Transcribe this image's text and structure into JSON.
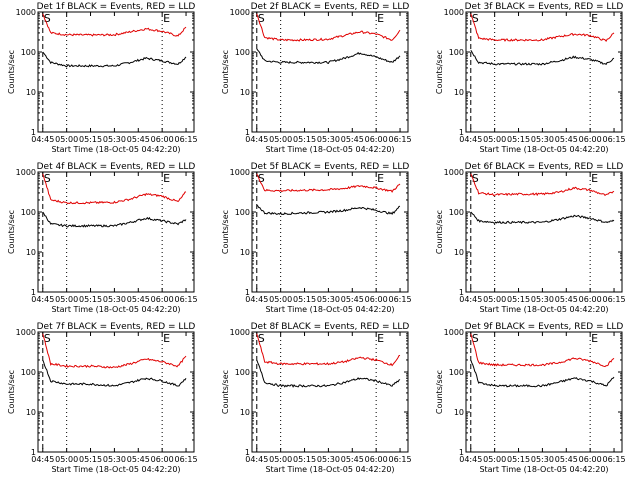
{
  "figure": {
    "ylabel": "Counts/sec",
    "xlabel_prefix": "Start Time (18-Oct-05 04:42:20)",
    "colors": {
      "events": "#000000",
      "lld": "#e00000",
      "axis": "#000000"
    }
  },
  "chart_data": [
    {
      "type": "line",
      "title": "Det 1f BLACK = Events, RED = LLD",
      "xlabel": "Start Time (18-Oct-05 04:42:20)",
      "ylabel": "Counts/sec",
      "x_ticks": [
        "04:45",
        "05:00",
        "05:15",
        "05:30",
        "05:45",
        "06:00",
        "06:15"
      ],
      "y_scale": "log",
      "ylim": [
        1,
        1000
      ],
      "y_ticks": [
        "1",
        "10",
        "100",
        "1000"
      ],
      "markers": [
        {
          "label": "S",
          "x": "04:45"
        },
        {
          "label": "E",
          "x": "06:00"
        }
      ],
      "series": [
        {
          "name": "Events",
          "x": [
            "04:45",
            "04:50",
            "05:00",
            "05:15",
            "05:30",
            "05:40",
            "05:50",
            "06:00",
            "06:10",
            "06:15"
          ],
          "values": [
            100,
            55,
            45,
            45,
            45,
            55,
            70,
            60,
            50,
            75
          ]
        },
        {
          "name": "LLD",
          "x": [
            "04:45",
            "04:50",
            "05:00",
            "05:15",
            "05:30",
            "05:40",
            "05:50",
            "06:00",
            "06:10",
            "06:15"
          ],
          "values": [
            900,
            300,
            270,
            265,
            270,
            320,
            380,
            330,
            250,
            420
          ]
        }
      ]
    },
    {
      "type": "line",
      "title": "Det 2f BLACK = Events, RED = LLD",
      "xlabel": "Start Time (18-Oct-05 04:42:20)",
      "ylabel": "Counts/sec",
      "x_ticks": [
        "04:45",
        "05:00",
        "05:15",
        "05:30",
        "05:45",
        "06:00",
        "06:15"
      ],
      "y_scale": "log",
      "ylim": [
        1,
        1000
      ],
      "y_ticks": [
        "1",
        "10",
        "100",
        "1000"
      ],
      "markers": [
        {
          "label": "S",
          "x": "04:45"
        },
        {
          "label": "E",
          "x": "06:00"
        }
      ],
      "series": [
        {
          "name": "Events",
          "x": [
            "04:45",
            "04:50",
            "05:00",
            "05:15",
            "05:30",
            "05:40",
            "05:50",
            "06:00",
            "06:10",
            "06:15"
          ],
          "values": [
            120,
            60,
            55,
            55,
            55,
            70,
            95,
            75,
            55,
            80
          ]
        },
        {
          "name": "LLD",
          "x": [
            "04:45",
            "04:50",
            "05:00",
            "05:15",
            "05:30",
            "05:40",
            "05:50",
            "06:00",
            "06:10",
            "06:15"
          ],
          "values": [
            900,
            230,
            200,
            200,
            210,
            260,
            320,
            280,
            200,
            350
          ]
        }
      ]
    },
    {
      "type": "line",
      "title": "Det 3f BLACK = Events, RED = LLD",
      "xlabel": "Start Time (18-Oct-05 04:42:20)",
      "ylabel": "Counts/sec",
      "x_ticks": [
        "04:45",
        "05:00",
        "05:15",
        "05:30",
        "05:45",
        "06:00",
        "06:15"
      ],
      "y_scale": "log",
      "ylim": [
        1,
        1000
      ],
      "y_ticks": [
        "1",
        "10",
        "100",
        "1000"
      ],
      "markers": [
        {
          "label": "S",
          "x": "04:45"
        },
        {
          "label": "E",
          "x": "06:00"
        }
      ],
      "series": [
        {
          "name": "Events",
          "x": [
            "04:45",
            "04:50",
            "05:00",
            "05:15",
            "05:30",
            "05:40",
            "05:50",
            "06:00",
            "06:10",
            "06:15"
          ],
          "values": [
            110,
            55,
            50,
            50,
            50,
            60,
            75,
            65,
            50,
            70
          ]
        },
        {
          "name": "LLD",
          "x": [
            "04:45",
            "04:50",
            "05:00",
            "05:15",
            "05:30",
            "05:40",
            "05:50",
            "06:00",
            "06:10",
            "06:15"
          ],
          "values": [
            900,
            220,
            200,
            200,
            200,
            240,
            280,
            260,
            190,
            300
          ]
        }
      ]
    },
    {
      "type": "line",
      "title": "Det 4f BLACK = Events, RED = LLD",
      "xlabel": "Start Time (18-Oct-05 04:42:20)",
      "ylabel": "Counts/sec",
      "x_ticks": [
        "04:45",
        "05:00",
        "05:15",
        "05:30",
        "05:45",
        "06:00",
        "06:15"
      ],
      "y_scale": "log",
      "ylim": [
        1,
        1000
      ],
      "y_ticks": [
        "1",
        "10",
        "100",
        "1000"
      ],
      "markers": [
        {
          "label": "S",
          "x": "04:45"
        },
        {
          "label": "E",
          "x": "06:00"
        }
      ],
      "series": [
        {
          "name": "Events",
          "x": [
            "04:45",
            "04:50",
            "05:00",
            "05:15",
            "05:30",
            "05:40",
            "05:50",
            "06:00",
            "06:10",
            "06:15"
          ],
          "values": [
            100,
            50,
            45,
            45,
            45,
            55,
            70,
            60,
            50,
            65
          ]
        },
        {
          "name": "LLD",
          "x": [
            "04:45",
            "04:50",
            "05:00",
            "05:15",
            "05:30",
            "05:40",
            "05:50",
            "06:00",
            "06:10",
            "06:15"
          ],
          "values": [
            900,
            200,
            170,
            170,
            175,
            210,
            280,
            250,
            180,
            320
          ]
        }
      ]
    },
    {
      "type": "line",
      "title": "Det 5f BLACK = Events, RED = LLD",
      "xlabel": "Start Time (18-Oct-05 04:42:20)",
      "ylabel": "Counts/sec",
      "x_ticks": [
        "04:45",
        "05:00",
        "05:15",
        "05:30",
        "05:45",
        "06:00",
        "06:15"
      ],
      "y_scale": "log",
      "ylim": [
        1,
        1000
      ],
      "y_ticks": [
        "1",
        "10",
        "100",
        "1000"
      ],
      "markers": [
        {
          "label": "S",
          "x": "04:45"
        },
        {
          "label": "E",
          "x": "06:00"
        }
      ],
      "series": [
        {
          "name": "Events",
          "x": [
            "04:45",
            "04:50",
            "05:00",
            "05:15",
            "05:30",
            "05:40",
            "05:50",
            "06:00",
            "06:10",
            "06:15"
          ],
          "values": [
            150,
            95,
            90,
            95,
            100,
            110,
            130,
            110,
            90,
            140
          ]
        },
        {
          "name": "LLD",
          "x": [
            "04:45",
            "04:50",
            "05:00",
            "05:15",
            "05:30",
            "05:40",
            "05:50",
            "06:00",
            "06:10",
            "06:15"
          ],
          "values": [
            900,
            350,
            340,
            350,
            360,
            390,
            450,
            400,
            330,
            500
          ]
        }
      ]
    },
    {
      "type": "line",
      "title": "Det 6f BLACK = Events, RED = LLD",
      "xlabel": "Start Time (18-Oct-05 04:42:20)",
      "ylabel": "Counts/sec",
      "x_ticks": [
        "04:45",
        "05:00",
        "05:15",
        "05:30",
        "05:45",
        "06:00",
        "06:15"
      ],
      "y_scale": "log",
      "ylim": [
        1,
        1000
      ],
      "y_ticks": [
        "1",
        "10",
        "100",
        "1000"
      ],
      "markers": [
        {
          "label": "S",
          "x": "04:45"
        },
        {
          "label": "E",
          "x": "06:00"
        }
      ],
      "series": [
        {
          "name": "Events",
          "x": [
            "04:45",
            "04:50",
            "05:00",
            "05:15",
            "05:30",
            "05:40",
            "05:50",
            "06:00",
            "06:10",
            "06:15"
          ],
          "values": [
            100,
            60,
            55,
            55,
            55,
            65,
            80,
            70,
            55,
            60
          ]
        },
        {
          "name": "LLD",
          "x": [
            "04:45",
            "04:50",
            "05:00",
            "05:15",
            "05:30",
            "05:40",
            "05:50",
            "06:00",
            "06:10",
            "06:15"
          ],
          "values": [
            900,
            300,
            270,
            280,
            280,
            310,
            400,
            350,
            260,
            330
          ]
        }
      ]
    },
    {
      "type": "line",
      "title": "Det 7f BLACK = Events, RED = LLD",
      "xlabel": "Start Time (18-Oct-05 04:42:20)",
      "ylabel": "Counts/sec",
      "x_ticks": [
        "04:45",
        "05:00",
        "05:15",
        "05:30",
        "05:45",
        "06:00",
        "06:15"
      ],
      "y_scale": "log",
      "ylim": [
        1,
        1000
      ],
      "y_ticks": [
        "1",
        "10",
        "100",
        "1000"
      ],
      "markers": [
        {
          "label": "S",
          "x": "04:45"
        },
        {
          "label": "E",
          "x": "06:00"
        }
      ],
      "series": [
        {
          "name": "Events",
          "x": [
            "04:45",
            "04:50",
            "05:00",
            "05:15",
            "05:30",
            "05:40",
            "05:50",
            "06:00",
            "06:10",
            "06:15"
          ],
          "values": [
            200,
            60,
            50,
            50,
            45,
            55,
            70,
            60,
            45,
            70
          ]
        },
        {
          "name": "LLD",
          "x": [
            "04:45",
            "04:50",
            "05:00",
            "05:15",
            "05:30",
            "05:40",
            "05:50",
            "06:00",
            "06:10",
            "06:15"
          ],
          "values": [
            900,
            160,
            140,
            140,
            130,
            160,
            210,
            180,
            140,
            250
          ]
        }
      ]
    },
    {
      "type": "line",
      "title": "Det 8f BLACK = Events, RED = LLD",
      "xlabel": "Start Time (18-Oct-05 04:42:20)",
      "ylabel": "Counts/sec",
      "x_ticks": [
        "04:45",
        "05:00",
        "05:15",
        "05:30",
        "05:45",
        "06:00",
        "06:15"
      ],
      "y_scale": "log",
      "ylim": [
        1,
        1000
      ],
      "y_ticks": [
        "1",
        "10",
        "100",
        "1000"
      ],
      "markers": [
        {
          "label": "S",
          "x": "04:45"
        },
        {
          "label": "E",
          "x": "06:00"
        }
      ],
      "series": [
        {
          "name": "Events",
          "x": [
            "04:45",
            "04:50",
            "05:00",
            "05:15",
            "05:30",
            "05:40",
            "05:50",
            "06:00",
            "06:10",
            "06:15"
          ],
          "values": [
            200,
            55,
            45,
            45,
            45,
            55,
            70,
            60,
            45,
            65
          ]
        },
        {
          "name": "LLD",
          "x": [
            "04:45",
            "04:50",
            "05:00",
            "05:15",
            "05:30",
            "05:40",
            "05:50",
            "06:00",
            "06:10",
            "06:15"
          ],
          "values": [
            900,
            180,
            160,
            160,
            160,
            180,
            230,
            200,
            150,
            260
          ]
        }
      ]
    },
    {
      "type": "line",
      "title": "Det 9f BLACK = Events, RED = LLD",
      "xlabel": "Start Time (18-Oct-05 04:42:20)",
      "ylabel": "Counts/sec",
      "x_ticks": [
        "04:45",
        "05:00",
        "05:15",
        "05:30",
        "05:45",
        "06:00",
        "06:15"
      ],
      "y_scale": "log",
      "ylim": [
        1,
        1000
      ],
      "y_ticks": [
        "1",
        "10",
        "100",
        "1000"
      ],
      "markers": [
        {
          "label": "S",
          "x": "04:45"
        },
        {
          "label": "E",
          "x": "06:00"
        }
      ],
      "series": [
        {
          "name": "Events",
          "x": [
            "04:45",
            "04:50",
            "05:00",
            "05:15",
            "05:30",
            "05:40",
            "05:50",
            "06:00",
            "06:10",
            "06:15"
          ],
          "values": [
            200,
            55,
            45,
            45,
            45,
            55,
            70,
            60,
            45,
            75
          ]
        },
        {
          "name": "LLD",
          "x": [
            "04:45",
            "04:50",
            "05:00",
            "05:15",
            "05:30",
            "05:40",
            "05:50",
            "06:00",
            "06:10",
            "06:15"
          ],
          "values": [
            900,
            170,
            150,
            150,
            150,
            170,
            220,
            190,
            140,
            220
          ]
        }
      ]
    }
  ]
}
